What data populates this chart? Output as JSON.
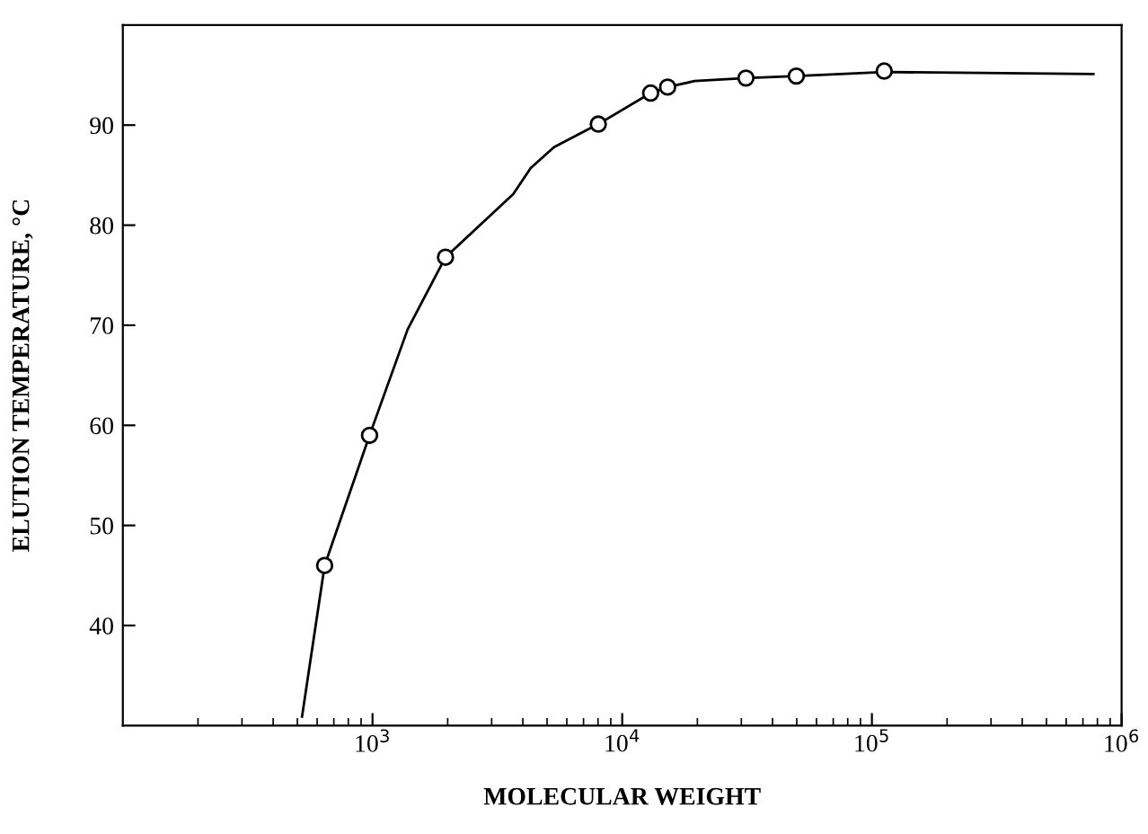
{
  "chart_data": {
    "type": "scatter",
    "xlabel": "MOLECULAR WEIGHT",
    "ylabel": "ELUTION TEMPERATURE, °C",
    "log": "x",
    "xlim": [
      100,
      1000000
    ],
    "xticks": [
      {
        "value": 1000,
        "label": "10$^{3}$"
      },
      {
        "value": 10000,
        "label": "10$^{4}$"
      },
      {
        "value": 100000,
        "label": "10$^{5}$"
      },
      {
        "value": 1000000,
        "label": "10$^{6}$"
      }
    ],
    "ylim": [
      30,
      100
    ],
    "yticks": [
      40,
      50,
      60,
      70,
      80,
      90
    ],
    "grid": false,
    "marker": "circle",
    "series": [
      {
        "type": "line",
        "color": "#000000",
        "marker": "none",
        "line_style": "solid",
        "x": [
          522,
          643,
          973,
          1383,
          1960,
          3660,
          4300,
          5330,
          8020,
          13000,
          15200,
          19500,
          31300,
          49800,
          112000,
          771000
        ],
        "values": [
          30.9,
          46.0,
          59.0,
          69.6,
          76.8,
          83.1,
          85.7,
          87.8,
          90.1,
          93.2,
          93.8,
          94.4,
          94.7,
          94.9,
          95.3,
          95.1
        ]
      },
      {
        "color": "#000000",
        "x": [
          643,
          973,
          1960,
          8020,
          13000,
          15200,
          31300,
          49800,
          112000
        ],
        "values": [
          46.0,
          59.0,
          76.8,
          90.1,
          93.2,
          93.8,
          94.7,
          94.9,
          95.4
        ]
      }
    ]
  }
}
